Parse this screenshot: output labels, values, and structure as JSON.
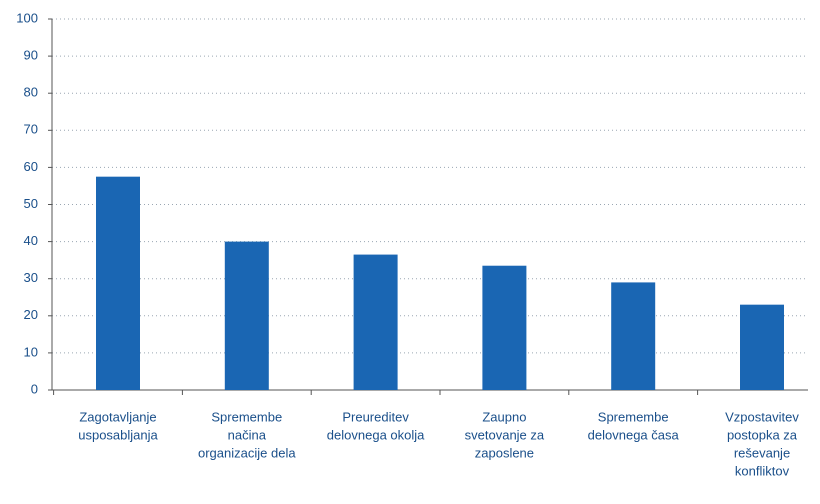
{
  "chart_data": {
    "type": "bar",
    "categories": [
      [
        "Zagotavljanje",
        "usposabljanja"
      ],
      [
        "Spremembe",
        "načina",
        "organizacije dela"
      ],
      [
        "Preureditev",
        "delovnega okolja"
      ],
      [
        "Zaupno",
        "svetovanje za",
        "zaposlene"
      ],
      [
        "Spremembe",
        "delovnega časa"
      ],
      [
        "Vzpostavitev",
        "postopka za",
        "reševanje",
        "konfliktov"
      ]
    ],
    "values": [
      57.5,
      40,
      36.5,
      33.5,
      29,
      23
    ],
    "color": "#1a66b3",
    "ylim": [
      0,
      100
    ],
    "yticks": [
      0,
      10,
      20,
      30,
      40,
      50,
      60,
      70,
      80,
      90,
      100
    ],
    "grid": true
  }
}
